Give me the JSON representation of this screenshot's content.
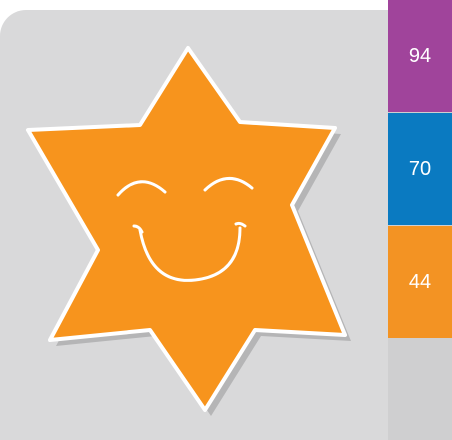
{
  "tabs": [
    {
      "label": "94",
      "color": "#a0449b"
    },
    {
      "label": "70",
      "color": "#0a7ac1"
    },
    {
      "label": "44",
      "color": "#f39323"
    }
  ]
}
